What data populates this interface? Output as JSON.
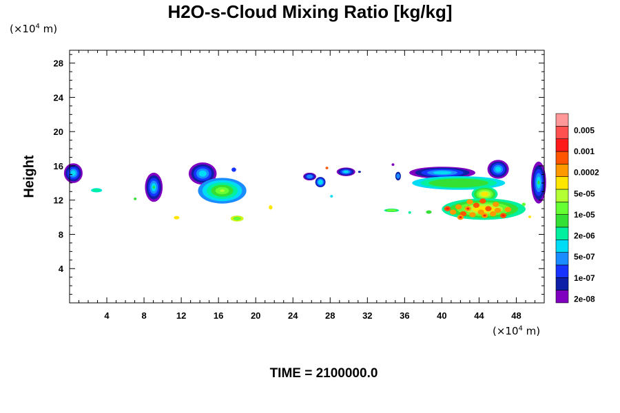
{
  "title": "H2O-s-Cloud Mixing Ratio [kg/kg]",
  "y_unit": {
    "prefix": "(×10",
    "exp": "4",
    "suffix": " m)"
  },
  "x_unit": {
    "prefix": "(×10",
    "exp": "4",
    "suffix": " m)"
  },
  "ylabel": "Height",
  "time_label": "TIME = 2100000.0",
  "chart_data": {
    "type": "heatmap",
    "title": "H2O-s-Cloud Mixing Ratio [kg/kg]",
    "xlabel": "",
    "ylabel": "Height",
    "x_unit": "(×10^4 m)",
    "y_unit": "(×10^4 m)",
    "xlim": [
      0,
      51
    ],
    "ylim": [
      0,
      29.5
    ],
    "x_ticks": [
      4,
      8,
      12,
      16,
      20,
      24,
      28,
      32,
      36,
      40,
      44,
      48
    ],
    "y_ticks": [
      4,
      8,
      12,
      16,
      20,
      24,
      28
    ],
    "colorbar": {
      "labels": [
        "0.005",
        "0.001",
        "0.0002",
        "5e-05",
        "1e-05",
        "2e-06",
        "5e-07",
        "1e-07",
        "2e-08"
      ],
      "colors": [
        "#7f00bf",
        "#0d1fa6",
        "#1733ff",
        "#1a8cff",
        "#00dcf5",
        "#00f0a0",
        "#33e033",
        "#66ff33",
        "#b3ff33",
        "#ffe600",
        "#ff9900",
        "#ff5500",
        "#ff1a1a",
        "#ff5050",
        "#ff9999"
      ]
    },
    "cloud_regions": [
      {
        "x": [
          0,
          1.4
        ],
        "y": [
          14,
          16.2
        ],
        "level": "2e-08 to 5e-07"
      },
      {
        "x": [
          2.3,
          3.5
        ],
        "y": [
          12.9,
          13.5
        ],
        "level": "5e-07 to 2e-06"
      },
      {
        "x": [
          8.1,
          10
        ],
        "y": [
          11.7,
          15.2
        ],
        "level": "2e-08 to 1e-05"
      },
      {
        "x": [
          11.3,
          11.6
        ],
        "y": [
          9.8,
          10.1
        ],
        "level": "5e-05"
      },
      {
        "x": [
          12.8,
          15.6
        ],
        "y": [
          13.8,
          16.3
        ],
        "level": "2e-08 to 2e-06"
      },
      {
        "x": [
          14,
          19
        ],
        "y": [
          11.5,
          14.5
        ],
        "level": "5e-07 to 5e-05"
      },
      {
        "x": [
          17.4,
          18.6
        ],
        "y": [
          9.5,
          10.2
        ],
        "level": "5e-05"
      },
      {
        "x": [
          25.2,
          26.4
        ],
        "y": [
          14.4,
          15.2
        ],
        "level": "2e-08 to 1e-07"
      },
      {
        "x": [
          26.5,
          27.5
        ],
        "y": [
          13.5,
          14.6
        ],
        "level": "2e-08 to 1e-07"
      },
      {
        "x": [
          28.7,
          30.7
        ],
        "y": [
          14.9,
          15.7
        ],
        "level": "2e-08 to 1e-07"
      },
      {
        "x": [
          36.5,
          43.5
        ],
        "y": [
          14.6,
          15.8
        ],
        "level": "2e-08 to 5e-07"
      },
      {
        "x": [
          37,
          47
        ],
        "y": [
          13.2,
          14.8
        ],
        "level": "5e-07 to 2e-06"
      },
      {
        "x": [
          45,
          47
        ],
        "y": [
          14.5,
          16.6
        ],
        "level": "2e-08 to 1e-07"
      },
      {
        "x": [
          49.7,
          51
        ],
        "y": [
          11.7,
          16.5
        ],
        "level": "2e-08 to 2e-06"
      },
      {
        "x": [
          33.8,
          35.5
        ],
        "y": [
          10.5,
          11
        ],
        "level": "2e-06 to 1e-05"
      },
      {
        "x": [
          40,
          49
        ],
        "y": [
          9.6,
          12.3
        ],
        "level": "5e-05 to 0.001"
      }
    ]
  }
}
